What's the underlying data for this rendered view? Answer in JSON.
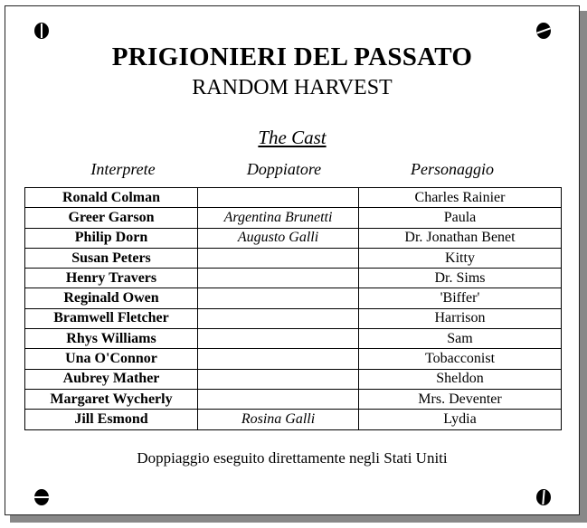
{
  "title": "PRIGIONIERI DEL PASSATO",
  "subtitle": "RANDOM HARVEST",
  "section_title": "The Cast",
  "columns": [
    "Interprete",
    "Doppiatore",
    "Personaggio"
  ],
  "rows": [
    {
      "actor": "Ronald Colman",
      "dubber": "",
      "character": "Charles Rainier"
    },
    {
      "actor": "Greer Garson",
      "dubber": "Argentina Brunetti",
      "character": "Paula"
    },
    {
      "actor": "Philip Dorn",
      "dubber": "Augusto Galli",
      "character": "Dr. Jonathan Benet"
    },
    {
      "actor": "Susan Peters",
      "dubber": "",
      "character": "Kitty"
    },
    {
      "actor": "Henry Travers",
      "dubber": "",
      "character": "Dr. Sims"
    },
    {
      "actor": "Reginald Owen",
      "dubber": "",
      "character": "'Biffer'"
    },
    {
      "actor": "Bramwell Fletcher",
      "dubber": "",
      "character": "Harrison"
    },
    {
      "actor": "Rhys Williams",
      "dubber": "",
      "character": "Sam"
    },
    {
      "actor": "Una O'Connor",
      "dubber": "",
      "character": "Tobacconist"
    },
    {
      "actor": "Aubrey Mather",
      "dubber": "",
      "character": "Sheldon"
    },
    {
      "actor": "Margaret Wycherly",
      "dubber": "",
      "character": "Mrs. Deventer"
    },
    {
      "actor": "Jill Esmond",
      "dubber": "Rosina Galli",
      "character": "Lydia"
    }
  ],
  "footer": "Doppiaggio eseguito direttamente negli Stati Uniti"
}
